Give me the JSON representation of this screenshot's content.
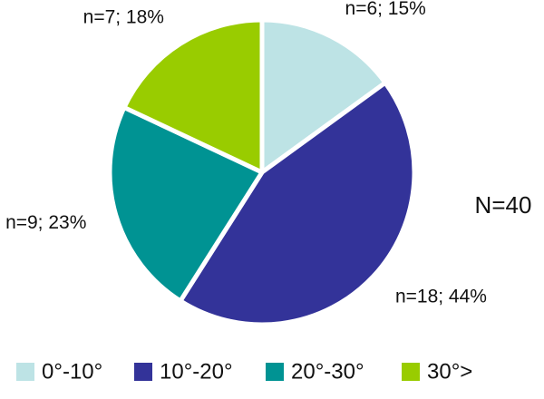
{
  "chart_data": {
    "type": "pie",
    "categories": [
      "0°-10°",
      "10°-20°",
      "20°-30°",
      "30°>"
    ],
    "values": [
      15,
      44,
      23,
      18
    ],
    "value_labels": [
      "n=6; 15%",
      "n=18; 44%",
      "n=9; 23%",
      "n=7; 18%"
    ],
    "colors": [
      "#bde3e5",
      "#333399",
      "#009393",
      "#99cc00"
    ],
    "annotation": "N=40",
    "legend": "bottom"
  }
}
